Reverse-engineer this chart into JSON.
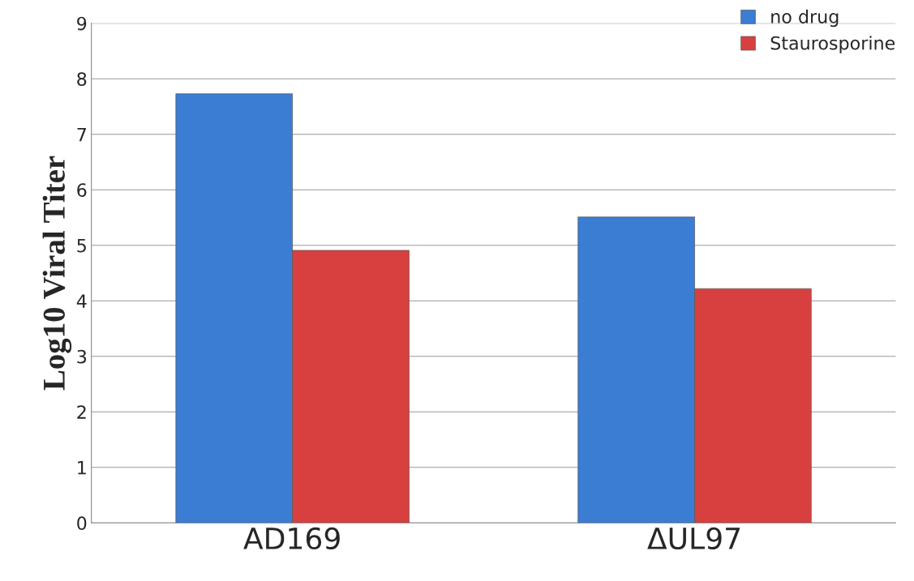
{
  "chart_data": {
    "type": "bar",
    "ylabel": "Log10 Viral Titer",
    "categories": [
      "AD169",
      "ΔUL97"
    ],
    "series": [
      {
        "name": "no drug",
        "color": "#3c7dd4",
        "values": [
          7.73,
          5.51
        ]
      },
      {
        "name": "Staurosporine",
        "color": "#d84040",
        "values": [
          4.91,
          4.22
        ]
      }
    ],
    "ylim": [
      0,
      9
    ],
    "yticks": [
      0,
      1,
      2,
      3,
      4,
      5,
      6,
      7,
      8,
      9
    ],
    "grid": "y",
    "legend": "top right"
  }
}
